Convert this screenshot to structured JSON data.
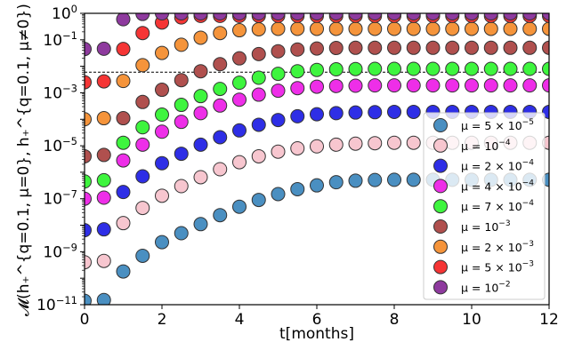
{
  "chart_data": {
    "type": "scatter",
    "xlabel": "t[months]",
    "ylabel": "𝓜(h₊^{q=0.1, μ=0}, h₊^{q=0.1, μ≠0})",
    "xlim": [
      0,
      12
    ],
    "ylim": [
      1e-11,
      1
    ],
    "yscale": "log",
    "grid": false,
    "legend_position": "lower-right",
    "x_ticks": [
      "0",
      "2",
      "4",
      "6",
      "8",
      "10",
      "12"
    ],
    "y_ticks": [
      {
        "value": 1e-11,
        "base": "10",
        "exp": "−11"
      },
      {
        "value": 1e-09,
        "base": "10",
        "exp": "−9"
      },
      {
        "value": 1e-07,
        "base": "10",
        "exp": "−7"
      },
      {
        "value": 1e-05,
        "base": "10",
        "exp": "−5"
      },
      {
        "value": 0.001,
        "base": "10",
        "exp": "−3"
      },
      {
        "value": 0.1,
        "base": "10",
        "exp": "−1"
      },
      {
        "value": 1,
        "base": "10",
        "exp": "0"
      }
    ],
    "reference_line": {
      "y": 0.006,
      "style": "dashed",
      "color": "#000000"
    },
    "x": [
      0,
      0.5,
      1,
      1.5,
      2,
      2.5,
      3,
      3.5,
      4,
      4.5,
      5,
      5.5,
      6,
      6.5,
      7,
      7.5,
      8,
      8.5,
      9,
      9.5,
      10,
      10.5,
      11,
      11.5,
      12
    ],
    "series": [
      {
        "name": "μ = 5 × 10⁻⁵",
        "label_main": "μ = 5 × 10",
        "label_exp": "−5",
        "color": "#4a8fc1",
        "values": [
          1.4e-11,
          1.5e-11,
          1.8e-10,
          7e-10,
          2.3e-09,
          5e-09,
          1.1e-08,
          2.4e-08,
          5e-08,
          9e-08,
          1.5e-07,
          2.3e-07,
          3.2e-07,
          4.2e-07,
          4.8e-07,
          5.1e-07,
          5.2e-07,
          5.2e-07,
          5.2e-07,
          5.2e-07,
          5.2e-07,
          5.2e-07,
          5.2e-07,
          5.2e-07,
          5.2e-07
        ]
      },
      {
        "name": "μ = 10⁻⁴",
        "label_main": "μ = 10",
        "label_exp": "−4",
        "color": "#f7c6cf",
        "values": [
          4e-10,
          4.5e-10,
          1.2e-08,
          4.5e-08,
          1.3e-07,
          3e-07,
          6.5e-07,
          1.3e-06,
          2.4e-06,
          4e-06,
          6e-06,
          8e-06,
          9.5e-06,
          1.1e-05,
          1.2e-05,
          1.25e-05,
          1.3e-05,
          1.3e-05,
          1.3e-05,
          1.3e-05,
          1.3e-05,
          1.3e-05,
          1.3e-05,
          1.3e-05,
          1.3e-05
        ]
      },
      {
        "name": "μ = 2 × 10⁻⁴",
        "label_main": "μ = 2 × 10",
        "label_exp": "−4",
        "color": "#2e2ee6",
        "values": [
          6.5e-09,
          7e-09,
          1.8e-07,
          7e-07,
          2.2e-06,
          5e-06,
          1.1e-05,
          2.1e-05,
          3.8e-05,
          6.2e-05,
          9.4e-05,
          0.00013,
          0.000155,
          0.00017,
          0.00018,
          0.000185,
          0.00019,
          0.00019,
          0.00019,
          0.00019,
          0.00019,
          0.00019,
          0.00019,
          0.00019,
          0.00019
        ]
      },
      {
        "name": "μ = 4 × 10⁻⁴",
        "label_main": "μ = 4 × 10",
        "label_exp": "−4",
        "color": "#ee2ee8",
        "values": [
          1e-07,
          1.1e-07,
          2.8e-06,
          1.1e-05,
          3.4e-05,
          8e-05,
          0.00017,
          0.00033,
          0.00055,
          0.00085,
          0.0012,
          0.0015,
          0.0017,
          0.0018,
          0.00185,
          0.0019,
          0.0019,
          0.0019,
          0.0019,
          0.0019,
          0.0019,
          0.0019,
          0.0019,
          0.0019,
          0.0019
        ]
      },
      {
        "name": "μ = 7 × 10⁻⁴",
        "label_main": "μ = 7 × 10",
        "label_exp": "−4",
        "color": "#3ef53e",
        "values": [
          4.5e-07,
          5e-07,
          1.3e-05,
          5e-05,
          0.00015,
          0.00035,
          0.00075,
          0.0014,
          0.0024,
          0.0037,
          0.0052,
          0.0065,
          0.0073,
          0.0077,
          0.0079,
          0.008,
          0.008,
          0.008,
          0.008,
          0.008,
          0.008,
          0.008,
          0.008,
          0.008,
          0.008
        ]
      },
      {
        "name": "μ = 10⁻³",
        "label_main": "μ = 10",
        "label_exp": "−3",
        "color": "#b0504e",
        "values": [
          4e-06,
          4.5e-06,
          0.00011,
          0.00045,
          0.0013,
          0.003,
          0.0065,
          0.012,
          0.02,
          0.029,
          0.037,
          0.043,
          0.047,
          0.049,
          0.05,
          0.05,
          0.05,
          0.05,
          0.05,
          0.05,
          0.05,
          0.05,
          0.05,
          0.05,
          0.05
        ]
      },
      {
        "name": "μ = 2 × 10⁻³",
        "label_main": "μ = 2 × 10",
        "label_exp": "−3",
        "color": "#f5943b",
        "values": [
          0.0001,
          0.00011,
          0.0028,
          0.011,
          0.032,
          0.065,
          0.12,
          0.18,
          0.23,
          0.25,
          0.26,
          0.26,
          0.26,
          0.26,
          0.26,
          0.26,
          0.26,
          0.26,
          0.26,
          0.26,
          0.26,
          0.26,
          0.26,
          0.26,
          0.26
        ]
      },
      {
        "name": "μ = 5 × 10⁻³",
        "label_main": "μ = 5 × 10",
        "label_exp": "−3",
        "color": "#f53535",
        "values": [
          0.0025,
          0.0027,
          0.045,
          0.18,
          0.45,
          0.7,
          0.8,
          0.8,
          0.8,
          0.8,
          0.8,
          0.8,
          0.8,
          0.8,
          0.8,
          0.8,
          0.8,
          0.8,
          0.8,
          0.8,
          0.8,
          0.8,
          0.8,
          0.8,
          0.8
        ]
      },
      {
        "name": "μ = 10⁻²",
        "label_main": "μ = 10",
        "label_exp": "−2",
        "color": "#8e3a9e",
        "values": [
          0.045,
          0.046,
          0.6,
          0.95,
          1,
          1,
          1,
          1,
          1,
          1,
          1,
          1,
          1,
          1,
          1,
          1,
          1,
          1,
          1,
          1,
          1,
          1,
          1,
          1,
          1
        ]
      }
    ]
  }
}
